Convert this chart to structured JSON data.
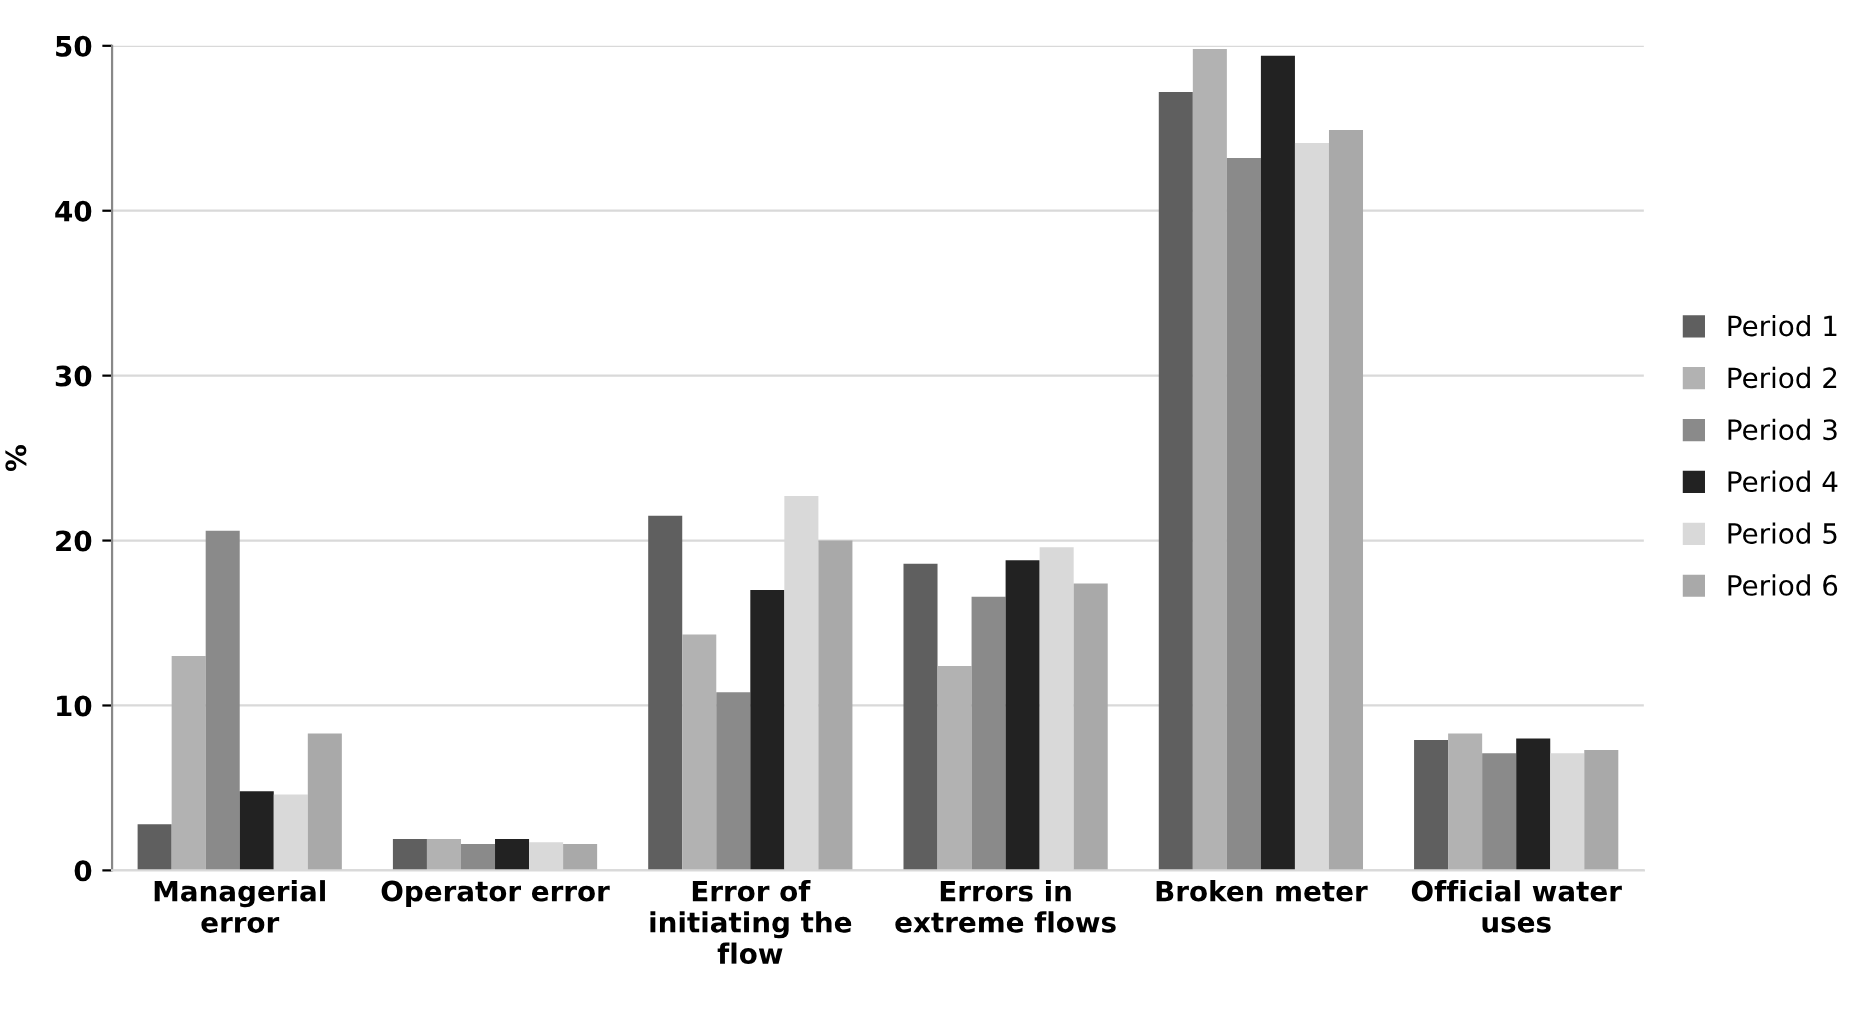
{
  "chart_data": {
    "type": "bar",
    "ylabel": "%",
    "categories": [
      "Managerial error",
      "Operator error",
      "Error of initiating the flow",
      "Errors in extreme flows",
      "Broken meter",
      "Official water uses"
    ],
    "series": [
      {
        "name": "Period 1",
        "color": "#5f5f5f",
        "values": [
          2.8,
          1.9,
          21.5,
          18.6,
          47.2,
          7.9
        ]
      },
      {
        "name": "Period 2",
        "color": "#b2b2b2",
        "values": [
          13.0,
          1.9,
          14.3,
          12.4,
          49.8,
          8.3
        ]
      },
      {
        "name": "Period 3",
        "color": "#8a8a8a",
        "values": [
          20.6,
          1.6,
          10.8,
          16.6,
          43.2,
          7.1
        ]
      },
      {
        "name": "Period 4",
        "color": "#222222",
        "values": [
          4.8,
          1.9,
          17.0,
          18.8,
          49.4,
          8.0
        ]
      },
      {
        "name": "Period 5",
        "color": "#d9d9d9",
        "values": [
          4.6,
          1.7,
          22.7,
          19.6,
          44.1,
          7.1
        ]
      },
      {
        "name": "Period 6",
        "color": "#a9a9a9",
        "values": [
          8.3,
          1.6,
          20.0,
          17.4,
          44.9,
          7.3
        ]
      }
    ],
    "ylim": [
      0,
      50
    ],
    "yticks": [
      0,
      10,
      20,
      30,
      40,
      50
    ],
    "grid": "y",
    "legend": "right"
  }
}
